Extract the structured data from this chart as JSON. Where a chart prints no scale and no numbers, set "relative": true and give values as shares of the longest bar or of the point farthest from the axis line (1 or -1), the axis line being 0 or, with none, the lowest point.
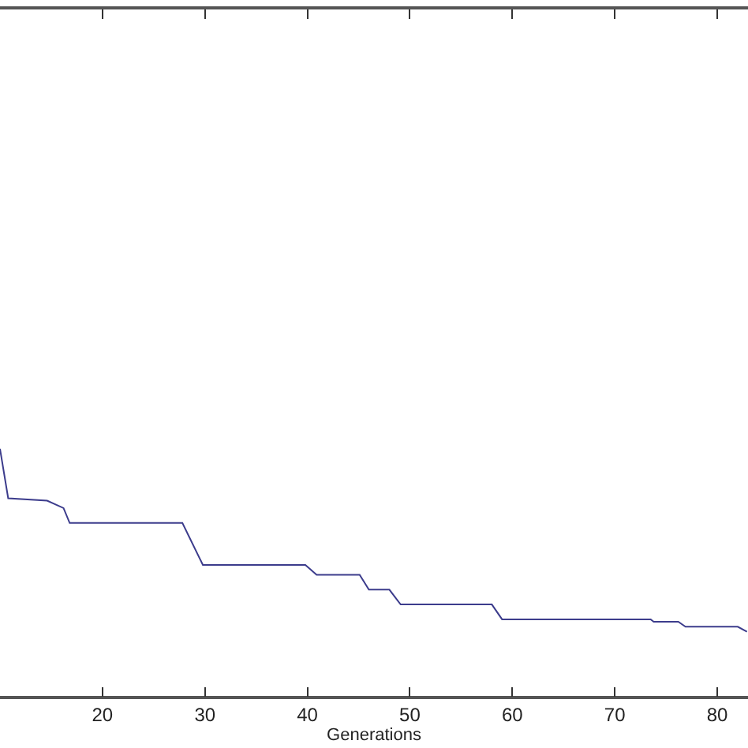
{
  "chart_data": {
    "type": "line",
    "relative": true,
    "xlabel": "Generations",
    "x": [
      10,
      10.8,
      14.6,
      16.2,
      16.8,
      27.8,
      29.8,
      39.8,
      40.9,
      45.1,
      46,
      48,
      49.1,
      58,
      59,
      73.5,
      73.8,
      76.2,
      76.9,
      82,
      82.9
    ],
    "series": [
      {
        "color": "#3c3c8c",
        "values": [
          1,
          0.8,
          0.79,
          0.76,
          0.7,
          0.7,
          0.53,
          0.53,
          0.49,
          0.49,
          0.43,
          0.43,
          0.37,
          0.37,
          0.31,
          0.31,
          0.3,
          0.3,
          0.28,
          0.28,
          0.26
        ]
      }
    ],
    "xlim": [
      10,
      83
    ],
    "xticks": [
      20,
      30,
      40,
      50,
      60,
      70,
      80
    ],
    "marker": "none",
    "line_style": "solid"
  }
}
